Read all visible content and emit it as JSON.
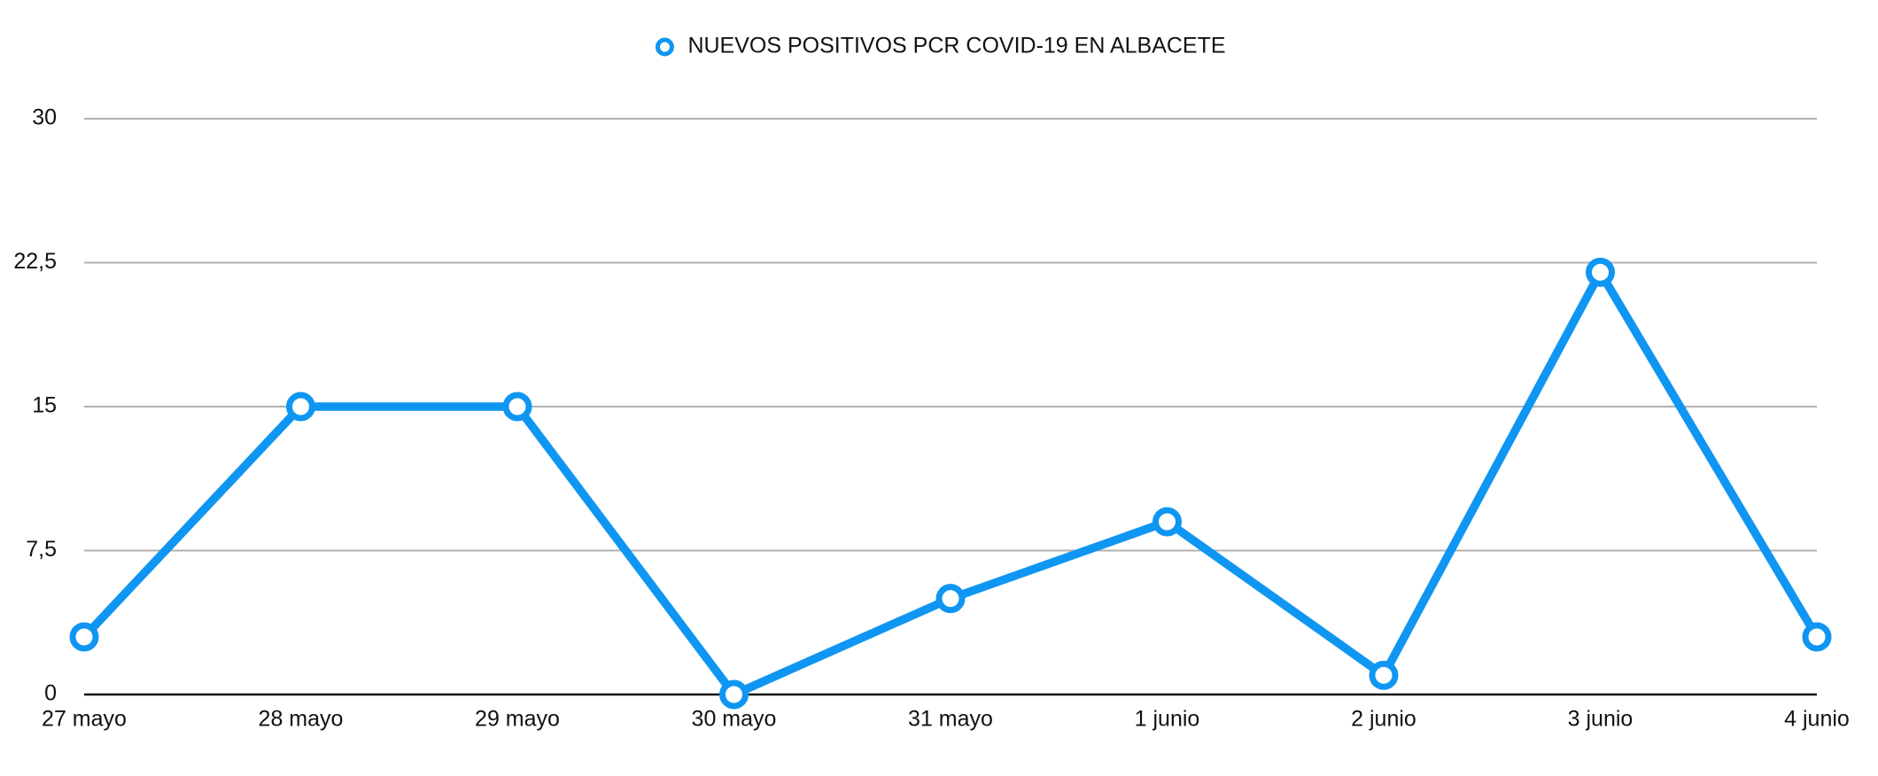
{
  "chart_data": {
    "type": "line",
    "categories": [
      "27 mayo",
      "28 mayo",
      "29 mayo",
      "30 mayo",
      "31 mayo",
      "1 junio",
      "2 junio",
      "3 junio",
      "4 junio"
    ],
    "series": [
      {
        "name": "NUEVOS POSITIVOS PCR COVID-19 EN ALBACETE",
        "color": "#0f96f2",
        "values": [
          3,
          15,
          15,
          0,
          5,
          9,
          1,
          22,
          3
        ]
      }
    ],
    "ylim": [
      0,
      30
    ],
    "yticks": [
      0,
      {
        "value": 7.5,
        "label": "7,5"
      },
      15,
      {
        "value": 22.5,
        "label": "22,5"
      },
      30
    ],
    "grid": true
  }
}
